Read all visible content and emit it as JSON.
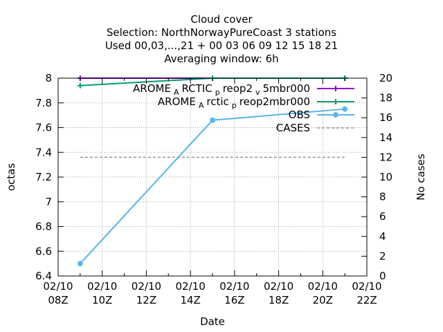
{
  "chart_data": {
    "type": "line",
    "title_lines": [
      "Cloud cover",
      "Selection: NorthNorwayPureCoast      3 stations",
      "Used  00,03,...,21  + 00 03 06 09 12 15 18 21",
      "Averaging window:  6h"
    ],
    "xlabel": "Date",
    "ylabel": "octas",
    "y2label": "No cases",
    "xlim": [
      8,
      22
    ],
    "ylim": [
      6.4,
      8
    ],
    "y2lim": [
      0,
      20
    ],
    "x_ticks": [
      {
        "x": 8,
        "line1": "02/10",
        "line2": "08Z"
      },
      {
        "x": 10,
        "line1": "02/10",
        "line2": "10Z"
      },
      {
        "x": 12,
        "line1": "02/10",
        "line2": "12Z"
      },
      {
        "x": 14,
        "line1": "02/10",
        "line2": "14Z"
      },
      {
        "x": 16,
        "line1": "02/10",
        "line2": "16Z"
      },
      {
        "x": 18,
        "line1": "02/10",
        "line2": "18Z"
      },
      {
        "x": 20,
        "line1": "02/10",
        "line2": "20Z"
      },
      {
        "x": 22,
        "line1": "02/10",
        "line2": "22Z"
      }
    ],
    "y_ticks": [
      "6.4",
      "6.6",
      "6.8",
      "7",
      "7.2",
      "7.4",
      "7.6",
      "7.8",
      "8"
    ],
    "y2_ticks": [
      "0",
      "2",
      "4",
      "6",
      "8",
      "10",
      "12",
      "14",
      "16",
      "18",
      "20"
    ],
    "grid": true,
    "legend_position": "top-right",
    "series": [
      {
        "name": "AROME_ARCTIC_preop2_v5mbr000",
        "legend_parts": [
          [
            "AROME",
            ""
          ],
          [
            "A",
            "sub"
          ],
          [
            "RCTIC",
            ""
          ],
          [
            "p",
            "sub"
          ],
          [
            "reop2",
            ""
          ],
          [
            "v",
            "sub"
          ],
          [
            "5mbr000",
            ""
          ]
        ],
        "color": "#9400d3",
        "marker": "plus",
        "axis": "y",
        "x": [
          9,
          15,
          21
        ],
        "y": [
          8,
          8,
          8
        ]
      },
      {
        "name": "AROME_Arctic_preop2mbr000",
        "legend_parts": [
          [
            "AROME",
            ""
          ],
          [
            "A",
            "sub"
          ],
          [
            "rctic",
            ""
          ],
          [
            "p",
            "sub"
          ],
          [
            "reop2mbr000",
            ""
          ]
        ],
        "color": "#009e73",
        "marker": "plus",
        "axis": "y",
        "x": [
          9,
          15,
          21
        ],
        "y": [
          7.94,
          8.0,
          8.0
        ]
      },
      {
        "name": "OBS",
        "legend_parts": [
          [
            "OBS",
            ""
          ]
        ],
        "color": "#56b4e9",
        "marker": "star",
        "axis": "y",
        "x": [
          9,
          15,
          21
        ],
        "y": [
          6.5,
          7.66,
          7.75
        ]
      },
      {
        "name": "CASES",
        "legend_parts": [
          [
            "CASES",
            ""
          ]
        ],
        "color": "#808080",
        "marker": "none",
        "dashed": true,
        "axis": "y2",
        "x": [
          9,
          15,
          21
        ],
        "y": [
          12,
          12,
          12
        ]
      }
    ]
  }
}
